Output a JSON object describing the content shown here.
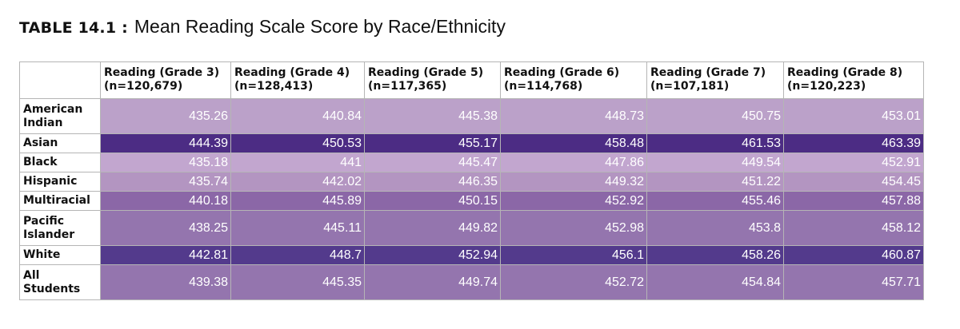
{
  "title": {
    "label": "TABLE 14.1 :",
    "text": "Mean Reading Scale Score by Race/Ethnicity"
  },
  "columns": [
    {
      "line1": "Reading (Grade 3)",
      "line2": "(n=120,679)"
    },
    {
      "line1": "Reading (Grade 4)",
      "line2": "(n=128,413)"
    },
    {
      "line1": "Reading (Grade 5)",
      "line2": "(n=117,365)"
    },
    {
      "line1": "Reading (Grade 6)",
      "line2": "(n=114,768)"
    },
    {
      "line1": "Reading (Grade 7)",
      "line2": "(n=107,181)"
    },
    {
      "line1": "Reading (Grade 8)",
      "line2": "(n=120,223)"
    }
  ],
  "rows": [
    {
      "line1": "American",
      "line2": "Indian",
      "values": [
        "435.26",
        "440.84",
        "445.38",
        "448.73",
        "450.75",
        "453.01"
      ]
    },
    {
      "line1": "Asian",
      "line2": "",
      "values": [
        "444.39",
        "450.53",
        "455.17",
        "458.48",
        "461.53",
        "463.39"
      ]
    },
    {
      "line1": "Black",
      "line2": "",
      "values": [
        "435.18",
        "441",
        "445.47",
        "447.86",
        "449.54",
        "452.91"
      ]
    },
    {
      "line1": "Hispanic",
      "line2": "",
      "values": [
        "435.74",
        "442.02",
        "446.35",
        "449.32",
        "451.22",
        "454.45"
      ]
    },
    {
      "line1": "Multiracial",
      "line2": "",
      "values": [
        "440.18",
        "445.89",
        "450.15",
        "452.92",
        "455.46",
        "457.88"
      ]
    },
    {
      "line1": "Pacific",
      "line2": "Islander",
      "values": [
        "438.25",
        "445.11",
        "449.82",
        "452.98",
        "453.8",
        "458.12"
      ]
    },
    {
      "line1": "White",
      "line2": "",
      "values": [
        "442.81",
        "448.7",
        "452.94",
        "456.1",
        "458.26",
        "460.87"
      ]
    },
    {
      "line1": "All",
      "line2": "Students",
      "values": [
        "439.38",
        "445.35",
        "449.74",
        "452.72",
        "454.84",
        "457.71"
      ]
    }
  ]
}
